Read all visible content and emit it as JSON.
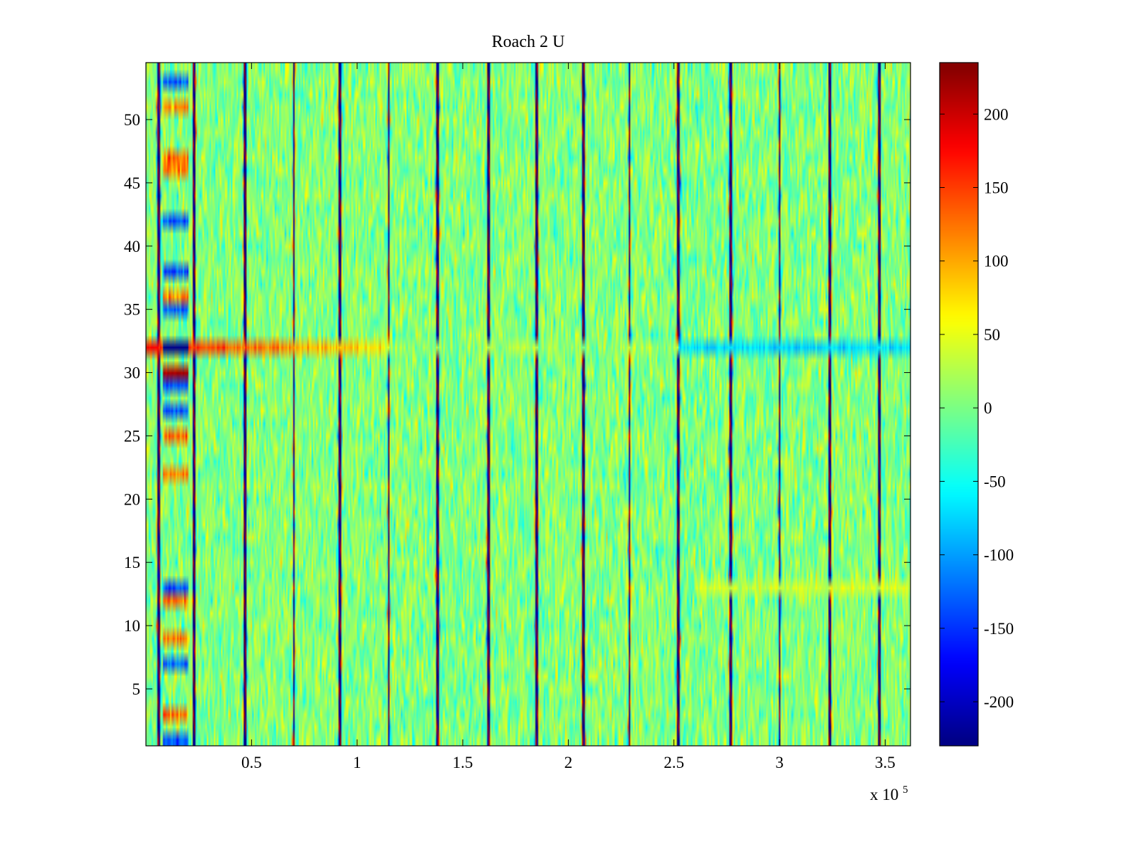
{
  "chart_data": {
    "type": "heatmap",
    "title": "Roach 2 U",
    "xlabel": "",
    "ylabel": "",
    "x_multiplier_label": "x 10",
    "x_multiplier_exponent": "5",
    "xlim": [
      0.0,
      3.62
    ],
    "ylim": [
      0.5,
      54.5
    ],
    "n_rows": 54,
    "x_ticks": [
      0.5,
      1,
      1.5,
      2,
      2.5,
      3,
      3.5
    ],
    "x_tick_labels": [
      "0.5",
      "1",
      "1.5",
      "2",
      "2.5",
      "3",
      "3.5"
    ],
    "y_ticks": [
      5,
      10,
      15,
      20,
      25,
      30,
      35,
      40,
      45,
      50
    ],
    "y_tick_labels": [
      "5",
      "10",
      "15",
      "20",
      "25",
      "30",
      "35",
      "40",
      "45",
      "50"
    ],
    "colorbar": {
      "colormap": "jet",
      "range": [
        -230,
        235
      ],
      "ticks": [
        -200,
        -150,
        -100,
        -50,
        0,
        50,
        100,
        150,
        200
      ],
      "tick_labels": [
        "-200",
        "-150",
        "-100",
        "-50",
        "0",
        "50",
        "100",
        "150",
        "200"
      ]
    },
    "event_lines_x": [
      0.06,
      0.23,
      0.47,
      0.7,
      0.92,
      1.15,
      1.38,
      1.62,
      1.85,
      2.07,
      2.29,
      2.52,
      2.77,
      3.0,
      3.24,
      3.47
    ],
    "highlight_row": {
      "row": 32,
      "positive_until_x": 1.15,
      "negative_from_x": 2.52
    },
    "early_band": {
      "x_range": [
        0.08,
        0.2
      ],
      "positive_rows": [
        3,
        9,
        12,
        22,
        25,
        30,
        36,
        46,
        47,
        51
      ],
      "negative_rows": [
        1,
        7,
        13,
        27,
        29,
        32,
        35,
        38,
        42,
        53
      ]
    },
    "row13_offset": {
      "from_x": 2.6,
      "value": 40
    }
  }
}
